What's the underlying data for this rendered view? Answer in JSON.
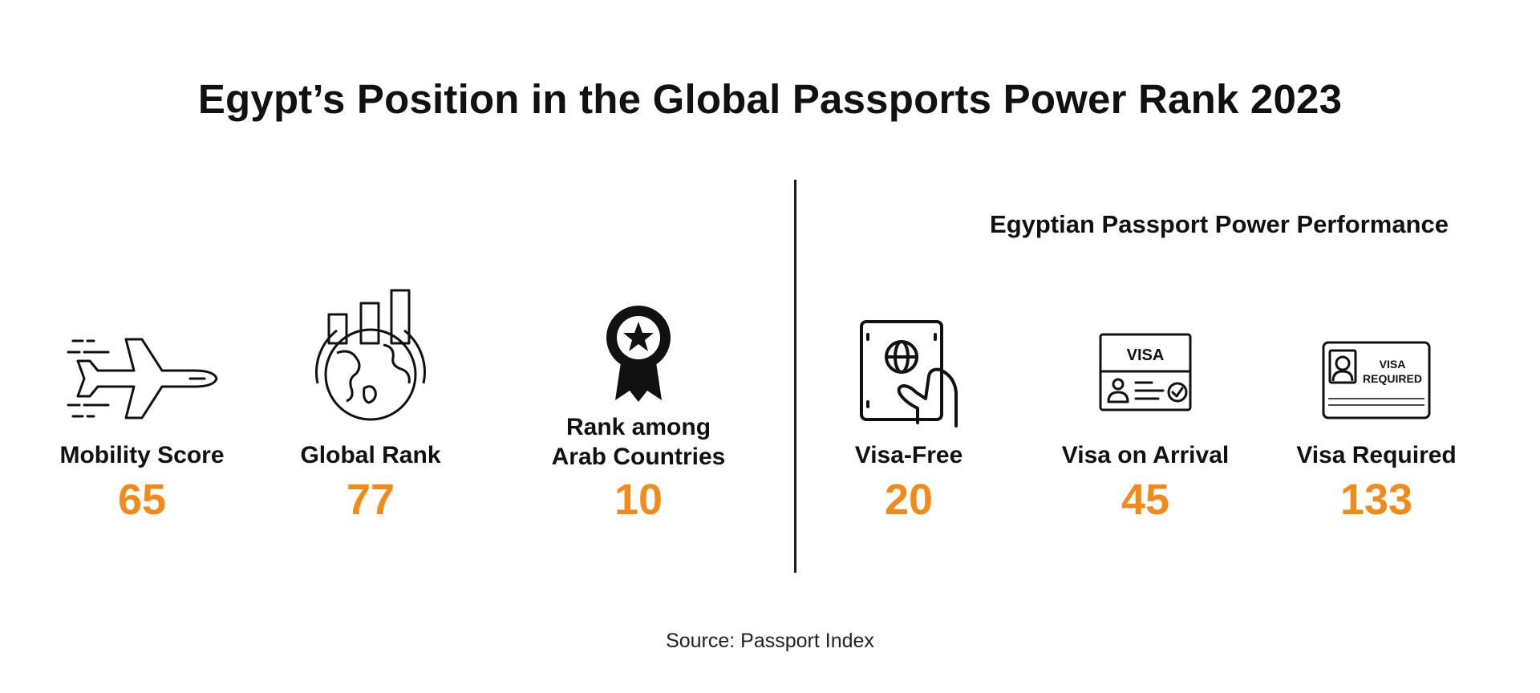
{
  "title": "Egypt’s Position in the Global Passports Power Rank 2023",
  "right_section_title": "Egyptian Passport Power Performance",
  "accent_color": "#f28a1a",
  "stats": [
    {
      "label": "Mobility Score",
      "value": "65",
      "icon": "airplane-icon"
    },
    {
      "label": "Global Rank",
      "value": "77",
      "icon": "globe-bar-chart-icon"
    },
    {
      "label_line1": "Rank among",
      "label_line2": "Arab Countries",
      "value": "10",
      "icon": "award-ribbon-icon"
    },
    {
      "label": "Visa-Free",
      "value": "20",
      "icon": "passport-hand-icon"
    },
    {
      "label": "Visa on Arrival",
      "value": "45",
      "icon": "visa-card-icon",
      "icon_text": "VISA"
    },
    {
      "label": "Visa Required",
      "value": "133",
      "icon": "visa-required-card-icon",
      "icon_text_line1": "VISA",
      "icon_text_line2": "REQUIRED"
    }
  ],
  "source": "Source: Passport Index"
}
